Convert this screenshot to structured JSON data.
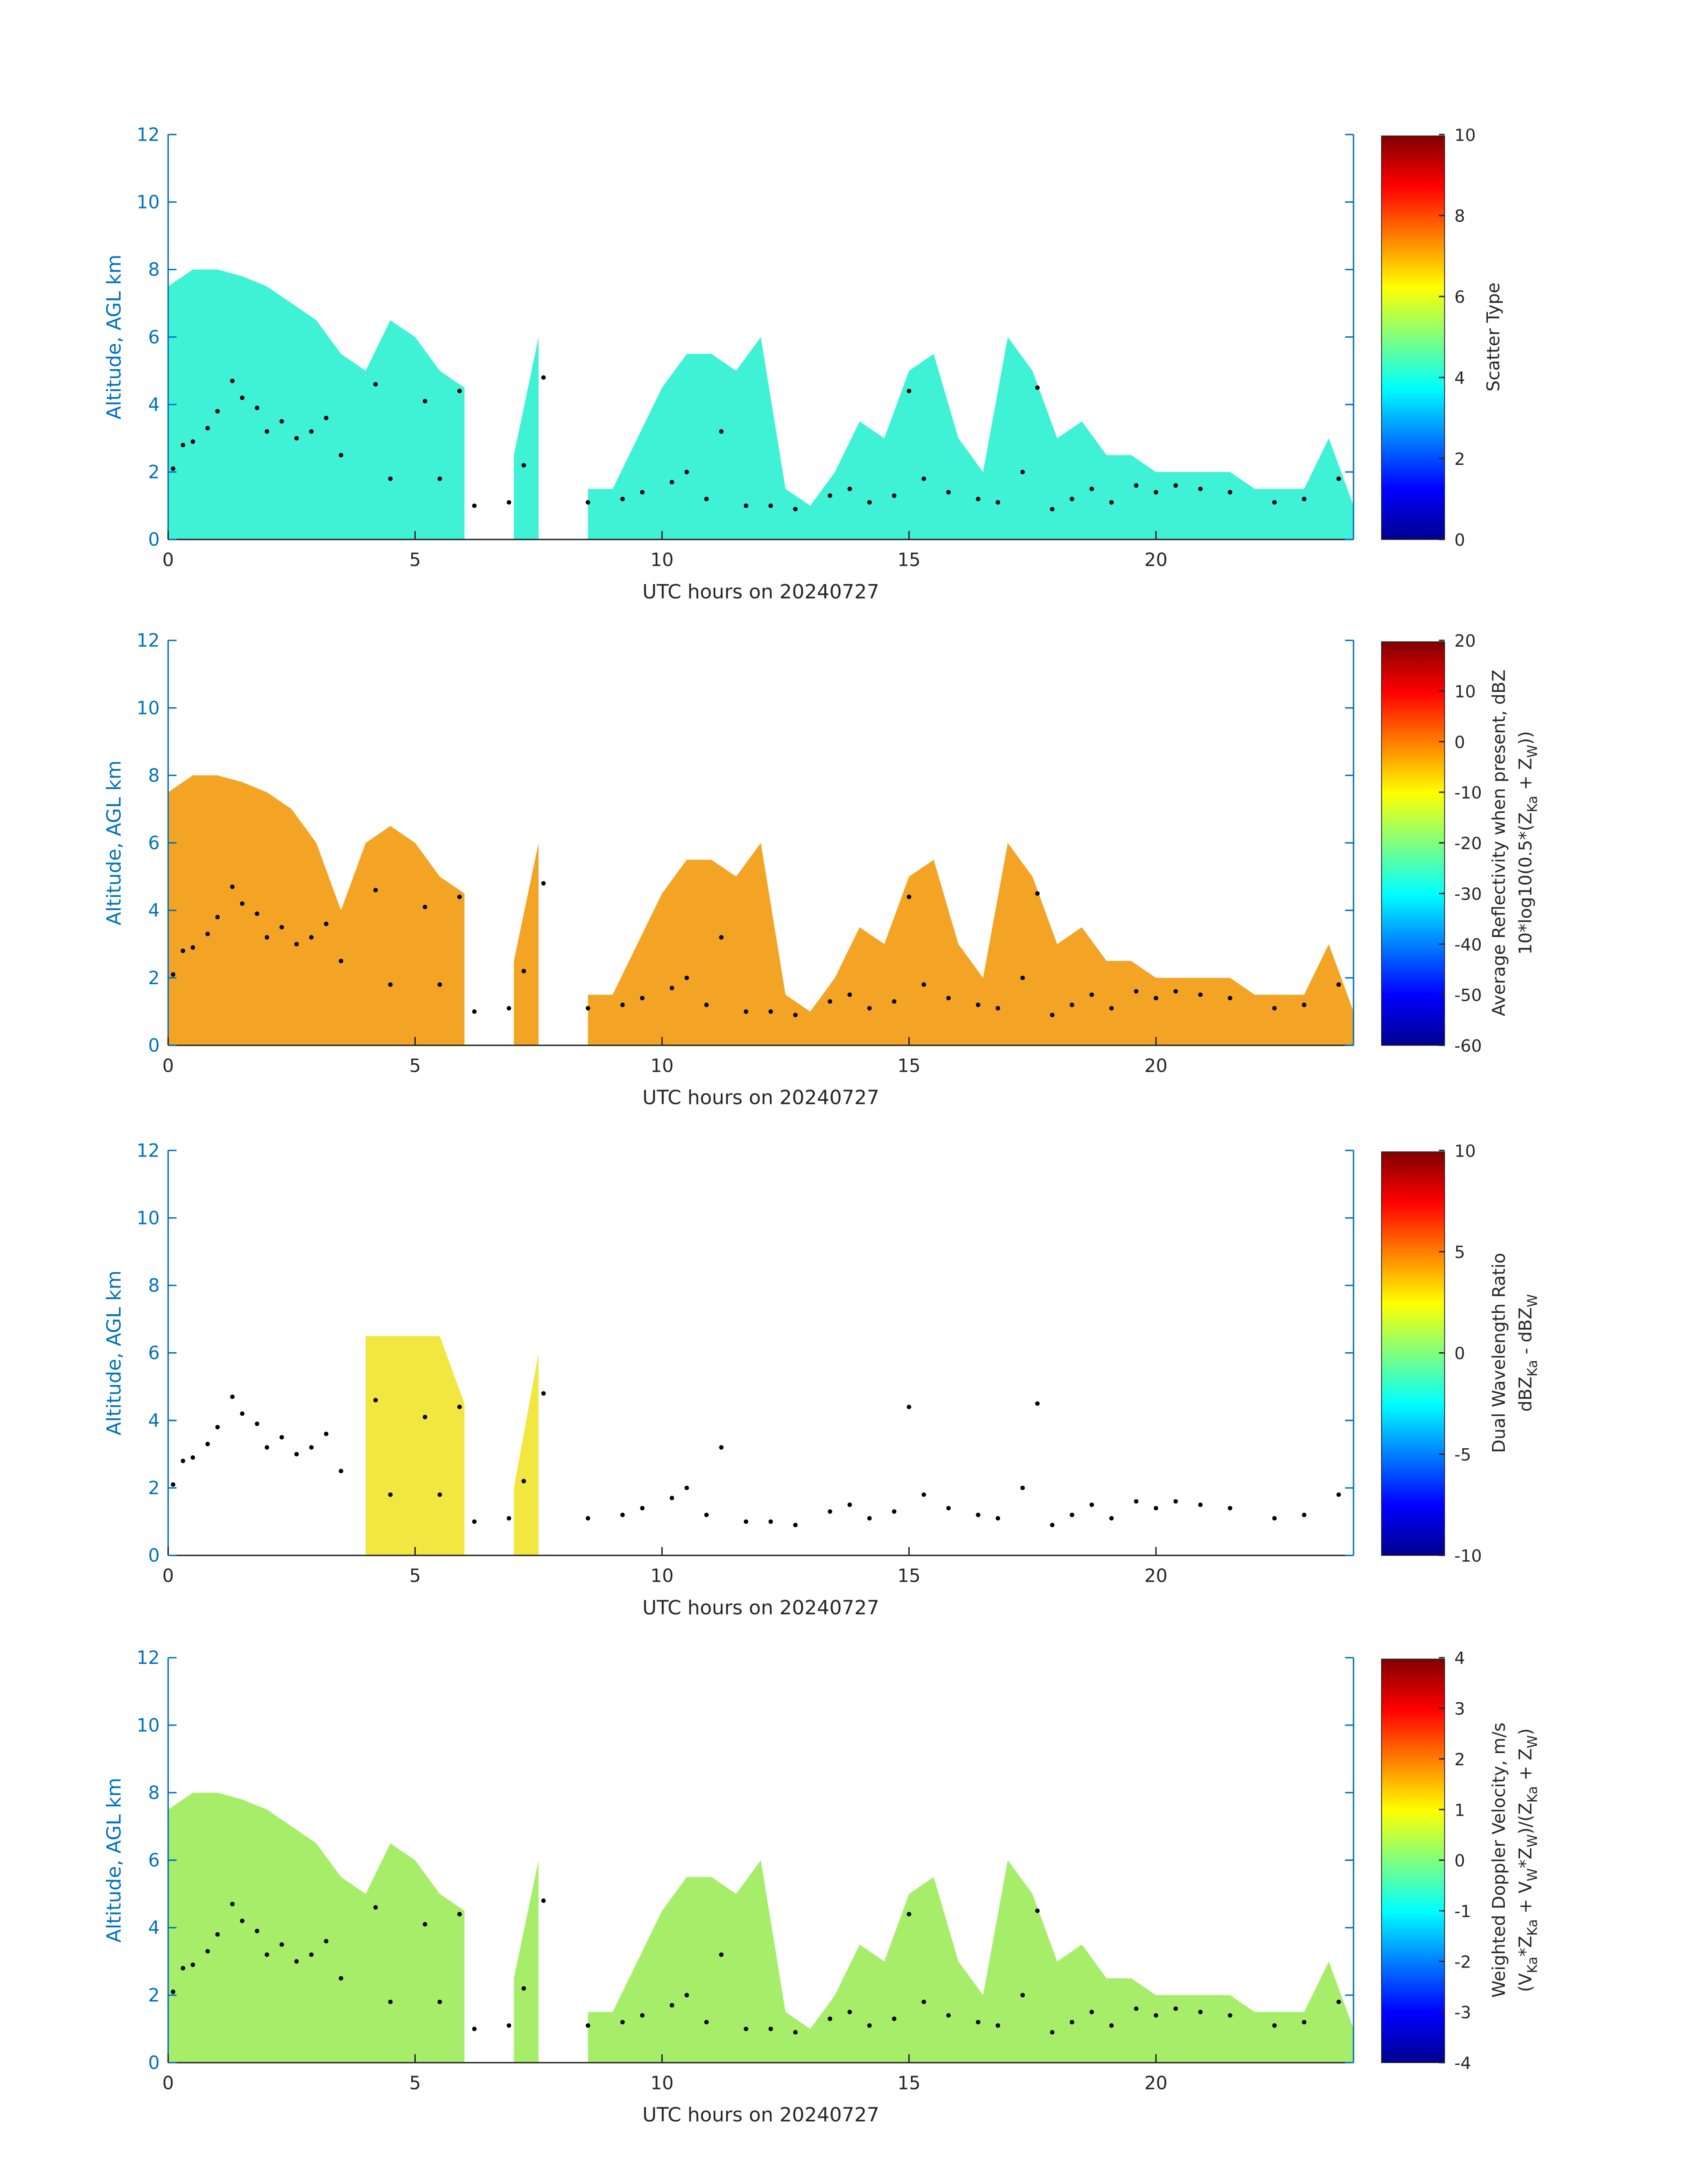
{
  "cloud_base": {
    "x": [
      0.1,
      0.3,
      0.5,
      0.8,
      1,
      1.3,
      1.5,
      1.8,
      2,
      2.3,
      2.6,
      2.9,
      3.2,
      3.5,
      4.2,
      4.5,
      5.2,
      5.5,
      5.9,
      6.2,
      6.9,
      7.2,
      7.6,
      8.5,
      9.2,
      9.6,
      10.2,
      10.5,
      10.9,
      11.2,
      11.7,
      12.2,
      12.7,
      13.4,
      13.8,
      14.2,
      14.7,
      15,
      15.3,
      15.8,
      16.4,
      16.8,
      17.3,
      17.6,
      17.9,
      18.3,
      18.7,
      19.1,
      19.6,
      20,
      20.4,
      20.9,
      21.5,
      22.4,
      23,
      23.7
    ],
    "y": [
      2.1,
      2.8,
      2.9,
      3.3,
      3.8,
      4.7,
      4.2,
      3.9,
      3.2,
      3.5,
      3,
      3.2,
      3.6,
      2.5,
      4.6,
      1.8,
      4.1,
      1.8,
      4.4,
      1,
      1.1,
      2.2,
      4.8,
      1.1,
      1.2,
      1.4,
      1.7,
      2,
      1.2,
      3.2,
      1,
      1,
      0.9,
      1.3,
      1.5,
      1.1,
      1.3,
      4.4,
      1.8,
      1.4,
      1.2,
      1.1,
      2,
      4.5,
      0.9,
      1.2,
      1.5,
      1.1,
      1.6,
      1.4,
      1.6,
      1.5,
      1.4,
      1.1,
      1.2,
      1.8
    ],
    "color": "#000000"
  },
  "chart_data": [
    {
      "type": "area",
      "xlabel": "UTC hours on 20240727",
      "ylabel": "Altitude, AGL km",
      "color": "#3ff2d6",
      "x": [
        0,
        0.5,
        1,
        1.5,
        2,
        2.5,
        3,
        3.5,
        4,
        4.5,
        5,
        5.5,
        6,
        6.5,
        7,
        7.5,
        8,
        8.5,
        9,
        9.5,
        10,
        10.5,
        11,
        11.5,
        12,
        12.5,
        13,
        13.5,
        14,
        14.5,
        15,
        15.5,
        16,
        16.5,
        17,
        17.5,
        18,
        18.5,
        19,
        19.5,
        20,
        20.5,
        21,
        21.5,
        22,
        22.5,
        23,
        23.5,
        24
      ],
      "values": [
        7.5,
        8,
        8,
        7.8,
        7.5,
        7,
        6.5,
        5.5,
        5,
        6.5,
        6,
        5,
        4.5,
        null,
        2.5,
        6,
        null,
        1.5,
        1.5,
        3,
        4.5,
        5.5,
        5.5,
        5,
        6,
        1.5,
        1,
        2,
        3.5,
        3,
        5,
        5.5,
        3,
        2,
        6,
        5,
        3,
        3.5,
        2.5,
        2.5,
        2,
        2,
        2,
        2,
        1.5,
        1.5,
        1.5,
        3,
        1
      ],
      "xlim": [
        0,
        24
      ],
      "ylim": [
        0,
        12
      ],
      "xticks": [
        0,
        5,
        10,
        15,
        20
      ],
      "yticks": [
        0,
        2,
        4,
        6,
        8,
        10,
        12
      ],
      "colorbar": {
        "colormap": "jet",
        "clim": [
          0,
          10
        ],
        "ticks": [
          0,
          2,
          4,
          6,
          8,
          10
        ],
        "label": [
          [
            "Scatter Type"
          ]
        ]
      }
    },
    {
      "type": "area",
      "xlabel": "UTC hours on 20240727",
      "ylabel": "Altitude, AGL km",
      "color": "#f4a424",
      "x": [
        0,
        0.5,
        1,
        1.5,
        2,
        2.5,
        3,
        3.5,
        4,
        4.5,
        5,
        5.5,
        6,
        6.5,
        7,
        7.5,
        8,
        8.5,
        9,
        9.5,
        10,
        10.5,
        11,
        11.5,
        12,
        12.5,
        13,
        13.5,
        14,
        14.5,
        15,
        15.5,
        16,
        16.5,
        17,
        17.5,
        18,
        18.5,
        19,
        19.5,
        20,
        20.5,
        21,
        21.5,
        22,
        22.5,
        23,
        23.5,
        24
      ],
      "values": [
        7.5,
        8,
        8,
        7.8,
        7.5,
        7,
        6,
        4,
        6,
        6.5,
        6,
        5,
        4.5,
        null,
        2.5,
        6,
        null,
        1.5,
        1.5,
        3,
        4.5,
        5.5,
        5.5,
        5,
        6,
        1.5,
        1,
        2,
        3.5,
        3,
        5,
        5.5,
        3,
        2,
        6,
        5,
        3,
        3.5,
        2.5,
        2.5,
        2,
        2,
        2,
        2,
        1.5,
        1.5,
        1.5,
        3,
        1
      ],
      "xlim": [
        0,
        24
      ],
      "ylim": [
        0,
        12
      ],
      "xticks": [
        0,
        5,
        10,
        15,
        20
      ],
      "yticks": [
        0,
        2,
        4,
        6,
        8,
        10,
        12
      ],
      "colorbar": {
        "colormap": "jet",
        "clim": [
          -60,
          20
        ],
        "ticks": [
          -60,
          -50,
          -40,
          -30,
          -20,
          -10,
          0,
          10,
          20
        ],
        "label": [
          [
            "Average Reflectivity when present, dBZ"
          ],
          [
            "10*log10(0.5*(Z",
            "Ka",
            " + Z",
            "W",
            "))"
          ]
        ]
      }
    },
    {
      "type": "area",
      "xlabel": "UTC hours on 20240727",
      "ylabel": "Altitude, AGL km",
      "color": "#f2e640",
      "x": [
        0,
        0.5,
        1,
        1.5,
        2,
        2.5,
        3,
        3.5,
        4,
        4.5,
        5,
        5.5,
        6,
        6.5,
        7,
        7.5,
        8,
        8.5,
        9,
        9.5,
        10,
        10.5,
        11,
        11.5,
        12,
        12.5,
        13,
        13.5,
        14,
        14.5,
        15,
        15.5,
        16,
        16.5,
        17,
        17.5,
        18,
        18.5,
        19,
        19.5,
        20,
        20.5,
        21,
        21.5,
        22,
        22.5,
        23,
        23.5,
        24
      ],
      "values": [
        null,
        null,
        null,
        null,
        null,
        null,
        null,
        null,
        6.5,
        6.5,
        6.5,
        6.5,
        4.5,
        null,
        2,
        6,
        null,
        null,
        null,
        null,
        null,
        null,
        null,
        null,
        null,
        null,
        null,
        null,
        null,
        null,
        null,
        null,
        null,
        null,
        null,
        null,
        null,
        null,
        null,
        null,
        null,
        null,
        null,
        null,
        null,
        null,
        null,
        null,
        null
      ],
      "xlim": [
        0,
        24
      ],
      "ylim": [
        0,
        12
      ],
      "xticks": [
        0,
        5,
        10,
        15,
        20
      ],
      "yticks": [
        0,
        2,
        4,
        6,
        8,
        10,
        12
      ],
      "colorbar": {
        "colormap": "jet",
        "clim": [
          -10,
          10
        ],
        "ticks": [
          -10,
          -5,
          0,
          5,
          10
        ],
        "label": [
          [
            "Dual Wavelength Ratio"
          ],
          [
            "dBZ",
            "Ka",
            " - dBZ",
            "W"
          ]
        ]
      }
    },
    {
      "type": "area",
      "xlabel": "UTC hours on 20240727",
      "ylabel": "Altitude, AGL km",
      "color": "#a6ee6a",
      "x": [
        0,
        0.5,
        1,
        1.5,
        2,
        2.5,
        3,
        3.5,
        4,
        4.5,
        5,
        5.5,
        6,
        6.5,
        7,
        7.5,
        8,
        8.5,
        9,
        9.5,
        10,
        10.5,
        11,
        11.5,
        12,
        12.5,
        13,
        13.5,
        14,
        14.5,
        15,
        15.5,
        16,
        16.5,
        17,
        17.5,
        18,
        18.5,
        19,
        19.5,
        20,
        20.5,
        21,
        21.5,
        22,
        22.5,
        23,
        23.5,
        24
      ],
      "values": [
        7.5,
        8,
        8,
        7.8,
        7.5,
        7,
        6.5,
        5.5,
        5,
        6.5,
        6,
        5,
        4.5,
        null,
        2.5,
        6,
        null,
        1.5,
        1.5,
        3,
        4.5,
        5.5,
        5.5,
        5,
        6,
        1.5,
        1,
        2,
        3.5,
        3,
        5,
        5.5,
        3,
        2,
        6,
        5,
        3,
        3.5,
        2.5,
        2.5,
        2,
        2,
        2,
        2,
        1.5,
        1.5,
        1.5,
        3,
        1
      ],
      "xlim": [
        0,
        24
      ],
      "ylim": [
        0,
        12
      ],
      "xticks": [
        0,
        5,
        10,
        15,
        20
      ],
      "yticks": [
        0,
        2,
        4,
        6,
        8,
        10,
        12
      ],
      "colorbar": {
        "colormap": "jet",
        "clim": [
          -4,
          4
        ],
        "ticks": [
          -4,
          -3,
          -2,
          -1,
          0,
          1,
          2,
          3,
          4
        ],
        "label": [
          [
            "Weighted Doppler Velocity, m/s"
          ],
          [
            "(V",
            "Ka",
            "*Z",
            "Ka",
            " + V",
            "W",
            "*Z",
            "W",
            ")/(Z",
            "Ka",
            " + Z",
            "W",
            ")"
          ]
        ]
      }
    }
  ]
}
